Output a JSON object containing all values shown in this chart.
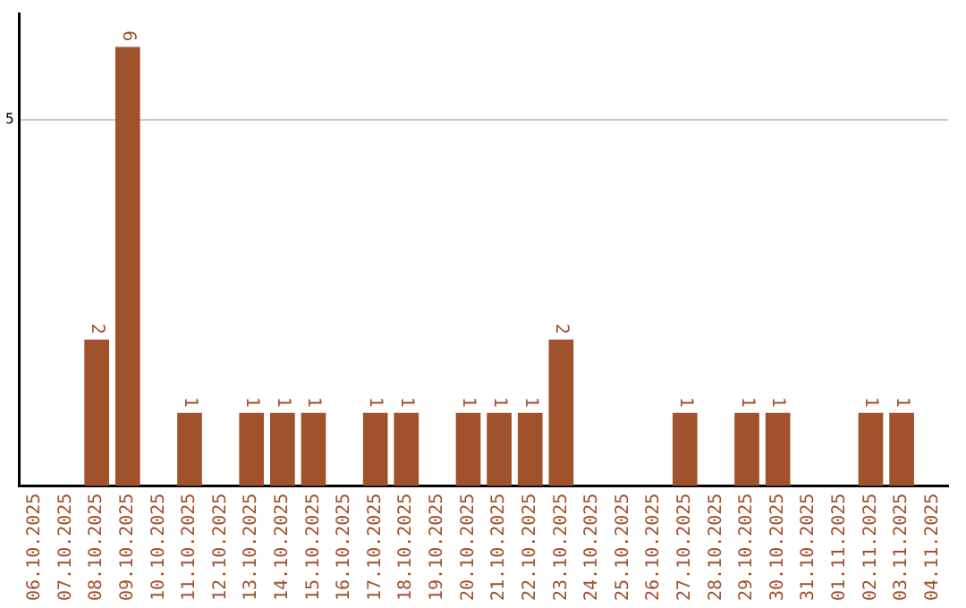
{
  "chart_data": {
    "type": "bar",
    "categories": [
      "06.10.2025",
      "07.10.2025",
      "08.10.2025",
      "09.10.2025",
      "10.10.2025",
      "11.10.2025",
      "12.10.2025",
      "13.10.2025",
      "14.10.2025",
      "15.10.2025",
      "16.10.2025",
      "17.10.2025",
      "18.10.2025",
      "19.10.2025",
      "20.10.2025",
      "21.10.2025",
      "22.10.2025",
      "23.10.2025",
      "24.10.2025",
      "25.10.2025",
      "26.10.2025",
      "27.10.2025",
      "28.10.2025",
      "29.10.2025",
      "30.10.2025",
      "31.10.2025",
      "01.11.2025",
      "02.11.2025",
      "03.11.2025",
      "04.11.2025"
    ],
    "values": [
      0,
      0,
      2,
      6,
      0,
      1,
      0,
      1,
      1,
      1,
      0,
      1,
      1,
      0,
      1,
      1,
      1,
      2,
      0,
      0,
      0,
      1,
      0,
      1,
      1,
      0,
      0,
      1,
      1,
      0
    ],
    "value_labels": [
      null,
      null,
      "2",
      "6",
      null,
      "1",
      null,
      "1",
      "1",
      "1",
      null,
      "1",
      "1",
      null,
      "1",
      "1",
      "1",
      "2",
      null,
      null,
      null,
      "1",
      null,
      "1",
      "1",
      null,
      null,
      "1",
      "1",
      null
    ],
    "color": "#a0522d",
    "ylim": [
      0,
      6.45
    ],
    "yticks": [
      5
    ],
    "grid": "y",
    "legend": false
  }
}
